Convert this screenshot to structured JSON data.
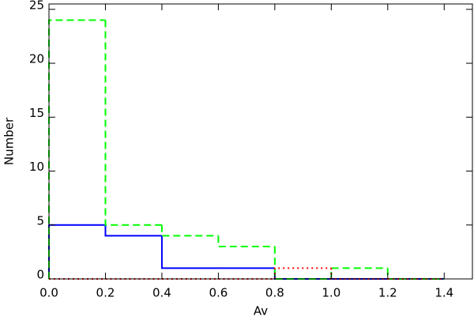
{
  "chart_data": {
    "type": "histogram",
    "xlabel": "Av",
    "ylabel": "Number",
    "bins": [
      0,
      0.2,
      0.4,
      0.6,
      0.8,
      1.0,
      1.2,
      1.4
    ],
    "series": [
      {
        "color": "#0000ff",
        "dash": "solid",
        "values": [
          5,
          4,
          1,
          1,
          0,
          0,
          0
        ]
      },
      {
        "color": "#00ff00",
        "dash": "dashed",
        "values": [
          24,
          5,
          4,
          3,
          0,
          1,
          0
        ]
      },
      {
        "color": "#ff0000",
        "dash": "dotted",
        "values": [
          0,
          0,
          0,
          0,
          1,
          0,
          0
        ]
      }
    ],
    "xlim": [
      0,
      1.5
    ],
    "xticks": [
      {
        "value": 0,
        "label": "0.0"
      },
      {
        "value": 0.2,
        "label": "0.2"
      },
      {
        "value": 0.4,
        "label": "0.4"
      },
      {
        "value": 0.6,
        "label": "0.6"
      },
      {
        "value": 0.8,
        "label": "0.8"
      },
      {
        "value": 1.0,
        "label": "1.0"
      },
      {
        "value": 1.2,
        "label": "1.2"
      },
      {
        "value": 1.4,
        "label": "1.4"
      }
    ],
    "ylim": [
      0,
      25.5
    ],
    "yticks": [
      0,
      5,
      10,
      15,
      20,
      25
    ]
  }
}
